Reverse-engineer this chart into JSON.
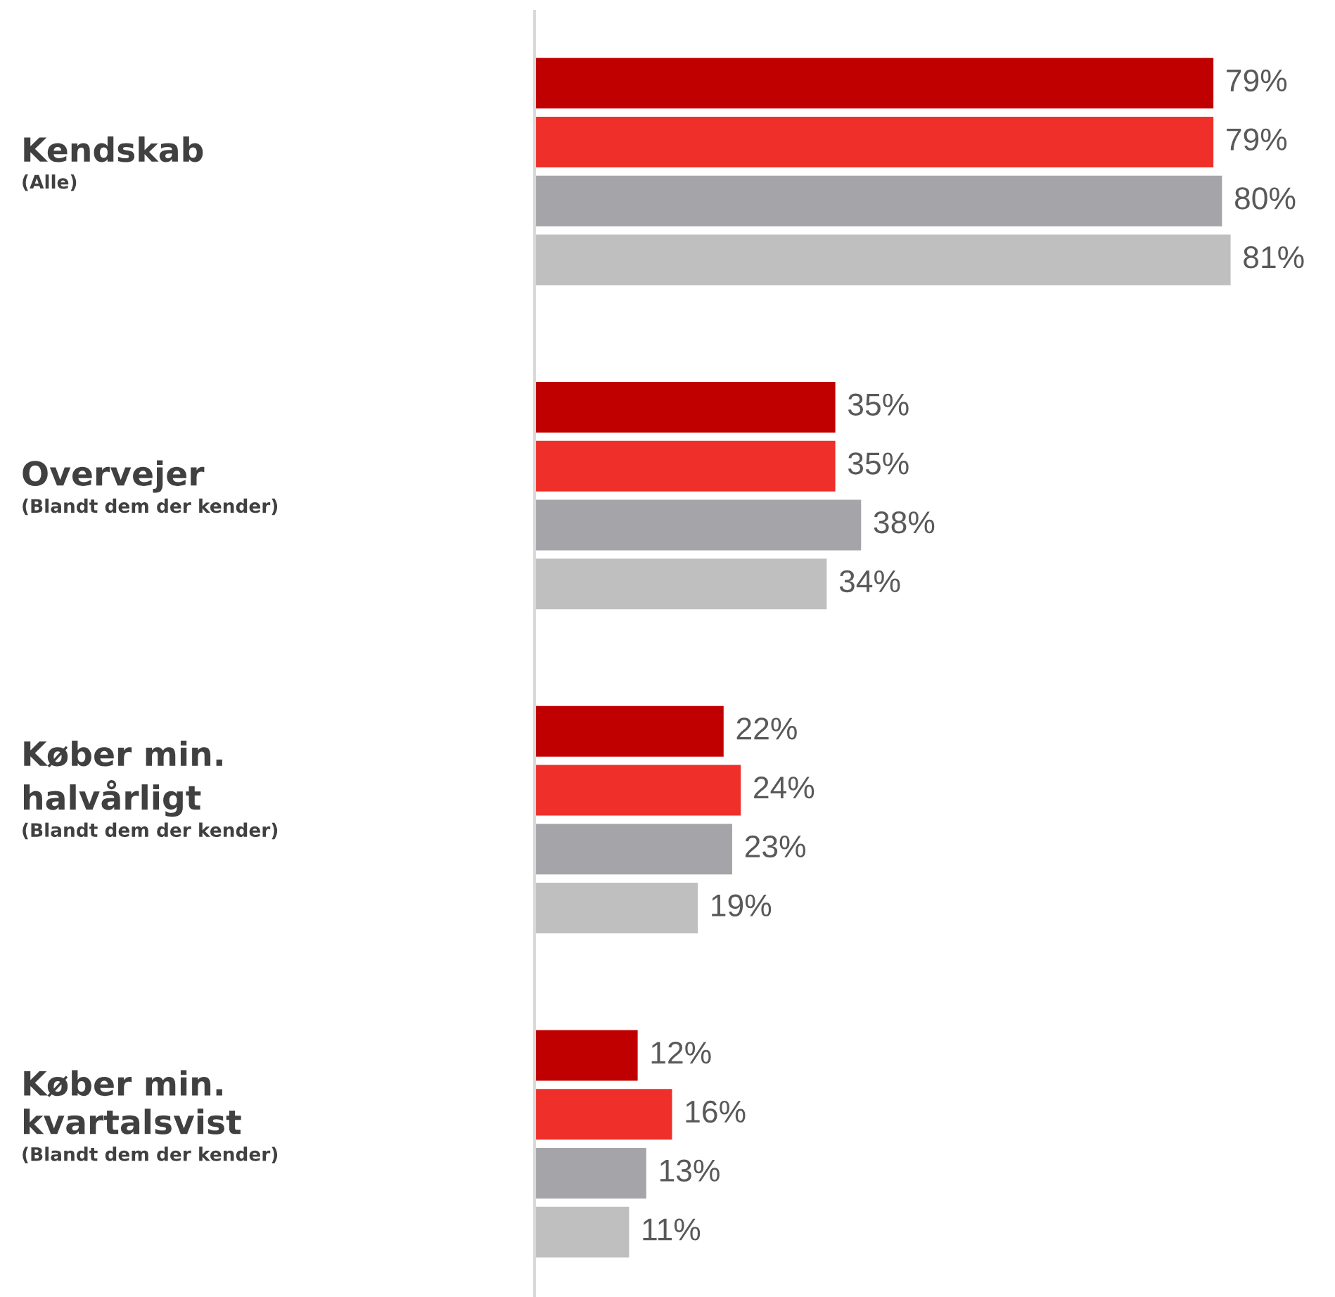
{
  "chart_data": {
    "type": "bar",
    "orientation": "horizontal",
    "categories": [
      "Kendskab\n(Alle)",
      "Overvejer\n(Blandt dem der kender)",
      "Køber min.\nhalvårligt\n(Blandt dem der kender)",
      "Køber min.\nkvartalsvist\n(Blandt dem der kender)"
    ],
    "series": [
      {
        "color": "#c00000",
        "values": [
          79,
          35,
          22,
          12
        ],
        "value_labels": [
          "79%",
          "35%",
          "22%",
          "12%"
        ]
      },
      {
        "color": "#ef2f2a",
        "values": [
          79,
          35,
          24,
          16
        ],
        "value_labels": [
          "79%",
          "35%",
          "24%",
          "16%"
        ]
      },
      {
        "color": "#a5a5a9",
        "values": [
          80,
          38,
          23,
          13
        ],
        "value_labels": [
          "80%",
          "38%",
          "23%",
          "13%"
        ]
      },
      {
        "color": "#bfbfbf",
        "values": [
          81,
          34,
          19,
          11
        ],
        "value_labels": [
          "81%",
          "34%",
          "19%",
          "11%"
        ]
      }
    ],
    "tick_labels": false
  }
}
